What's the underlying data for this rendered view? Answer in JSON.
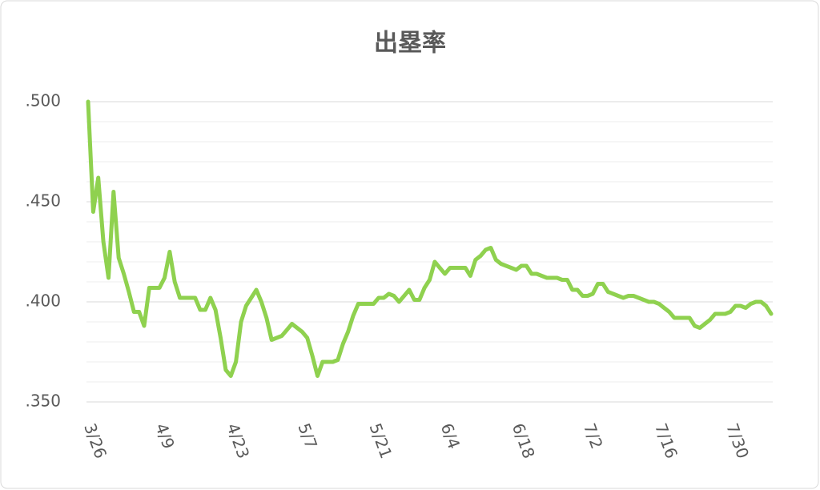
{
  "chart_data": {
    "type": "line",
    "title": "出塁率",
    "categories": [
      "3/26",
      null,
      null,
      null,
      null,
      null,
      null,
      null,
      null,
      null,
      null,
      null,
      null,
      null,
      "4/9",
      null,
      null,
      null,
      null,
      null,
      null,
      null,
      null,
      null,
      null,
      null,
      null,
      null,
      "4/23",
      null,
      null,
      null,
      null,
      null,
      null,
      null,
      null,
      null,
      null,
      null,
      null,
      null,
      "5/7",
      null,
      null,
      null,
      null,
      null,
      null,
      null,
      null,
      null,
      null,
      null,
      null,
      null,
      "5/21",
      null,
      null,
      null,
      null,
      null,
      null,
      null,
      null,
      null,
      null,
      null,
      null,
      null,
      "6/4",
      null,
      null,
      null,
      null,
      null,
      null,
      null,
      null,
      null,
      null,
      null,
      null,
      null,
      "6/18",
      null,
      null,
      null,
      null,
      null,
      null,
      null,
      null,
      null,
      null,
      null,
      null,
      null,
      "7/2",
      null,
      null,
      null,
      null,
      null,
      null,
      null,
      null,
      null,
      null,
      null,
      null,
      null,
      "7/16",
      null,
      null,
      null,
      null,
      null,
      null,
      null,
      null,
      null,
      null,
      null,
      null,
      null,
      "7/30",
      null,
      null,
      null,
      null,
      null,
      null,
      null,
      null
    ],
    "values": [
      0.5,
      0.445,
      0.462,
      0.43,
      0.412,
      0.455,
      0.422,
      0.414,
      0.405,
      0.395,
      0.395,
      0.388,
      0.407,
      0.407,
      0.407,
      0.412,
      0.425,
      0.41,
      0.402,
      0.402,
      0.402,
      0.402,
      0.396,
      0.396,
      0.402,
      0.396,
      0.382,
      0.366,
      0.363,
      0.37,
      0.39,
      0.398,
      0.402,
      0.406,
      0.4,
      0.392,
      0.381,
      0.382,
      0.383,
      0.386,
      0.389,
      0.387,
      0.385,
      0.382,
      0.373,
      0.363,
      0.37,
      0.37,
      0.37,
      0.371,
      0.379,
      0.385,
      0.393,
      0.399,
      0.399,
      0.399,
      0.399,
      0.402,
      0.402,
      0.404,
      0.403,
      0.4,
      0.403,
      0.406,
      0.401,
      0.401,
      0.407,
      0.411,
      0.42,
      0.417,
      0.414,
      0.417,
      0.417,
      0.417,
      0.417,
      0.413,
      0.421,
      0.423,
      0.426,
      0.427,
      0.421,
      0.419,
      0.418,
      0.417,
      0.416,
      0.418,
      0.418,
      0.414,
      0.414,
      0.413,
      0.412,
      0.412,
      0.412,
      0.411,
      0.411,
      0.406,
      0.406,
      0.403,
      0.403,
      0.404,
      0.409,
      0.409,
      0.405,
      0.404,
      0.403,
      0.402,
      0.403,
      0.403,
      0.402,
      0.401,
      0.4,
      0.4,
      0.399,
      0.397,
      0.395,
      0.392,
      0.392,
      0.392,
      0.392,
      0.388,
      0.387,
      0.389,
      0.391,
      0.394,
      0.394,
      0.394,
      0.395,
      0.398,
      0.398,
      0.397,
      0.399,
      0.4,
      0.4,
      0.398,
      0.394
    ],
    "color": "#8fd14f",
    "ylim": [
      0.35,
      0.5
    ],
    "yticks": [
      {
        "value": 0.35,
        "label": ".350"
      },
      {
        "value": 0.4,
        "label": ".400"
      },
      {
        "value": 0.45,
        "label": ".450"
      },
      {
        "value": 0.5,
        "label": ".500"
      }
    ],
    "minor_yticks": [
      0.36,
      0.37,
      0.38,
      0.39,
      0.41,
      0.42,
      0.43,
      0.44,
      0.46,
      0.47,
      0.48,
      0.49
    ],
    "grid": true
  }
}
